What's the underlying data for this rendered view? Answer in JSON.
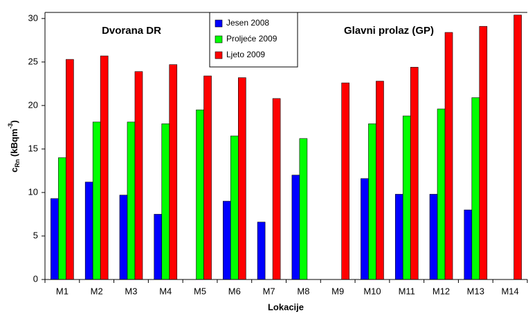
{
  "chart_data": {
    "type": "bar",
    "x_label": "Lokacije",
    "y_label": {
      "base": "c",
      "sub": "Rn",
      "unit": " (kBqm",
      "sup": "-3",
      "close": ")"
    },
    "annotations": [
      "Dvorana DR",
      "Glavni prolaz (GP)"
    ],
    "categories": [
      "M1",
      "M2",
      "M3",
      "M4",
      "M5",
      "M6",
      "M7",
      "M8",
      "M9",
      "M10",
      "M11",
      "M12",
      "M13",
      "M14"
    ],
    "series": [
      {
        "name": "Jesen 2008",
        "color": "#0000ff",
        "values": [
          9.3,
          11.2,
          9.7,
          7.5,
          null,
          9.0,
          6.6,
          12.0,
          null,
          11.6,
          9.8,
          9.8,
          8.0,
          null
        ]
      },
      {
        "name": "Proljeće 2009",
        "color": "#00ff00",
        "values": [
          14.0,
          18.1,
          18.1,
          17.9,
          19.5,
          16.5,
          null,
          16.2,
          null,
          17.9,
          18.8,
          19.6,
          20.9,
          null
        ]
      },
      {
        "name": "Ljeto 2009",
        "color": "#ff0000",
        "values": [
          25.3,
          25.7,
          23.9,
          24.7,
          23.4,
          23.2,
          20.8,
          null,
          22.6,
          22.8,
          24.4,
          28.4,
          29.1,
          30.4
        ]
      }
    ],
    "ylim": [
      0,
      30.7
    ],
    "yticks": [
      0,
      5,
      10,
      15,
      20,
      25,
      30
    ]
  }
}
